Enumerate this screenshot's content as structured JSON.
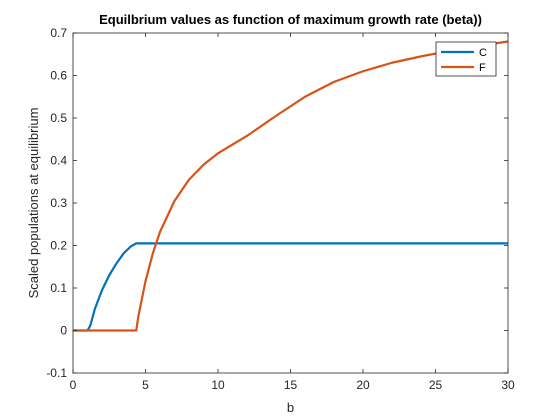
{
  "chart_data": {
    "type": "line",
    "title": "Equilbrium values as function of maximum growth rate (beta))",
    "xlabel": "b",
    "ylabel": "Scaled populations at equilibrium",
    "xlim": [
      0,
      30
    ],
    "ylim": [
      -0.1,
      0.7
    ],
    "xticks": [
      "0",
      "5",
      "10",
      "15",
      "20",
      "25",
      "30"
    ],
    "yticks": [
      "-0.1",
      "0",
      "0.1",
      "0.2",
      "0.3",
      "0.4",
      "0.5",
      "0.6",
      "0.7"
    ],
    "legend_placement": "top-right",
    "grid": false,
    "series": [
      {
        "name": "C",
        "color": "#0072BD",
        "x": [
          0,
          1.0,
          1.2,
          1.5,
          2.0,
          2.5,
          3.0,
          3.5,
          4.0,
          4.36,
          5,
          10,
          15,
          20,
          25,
          30
        ],
        "y": [
          0,
          0,
          0.012,
          0.05,
          0.095,
          0.13,
          0.158,
          0.182,
          0.198,
          0.205,
          0.205,
          0.205,
          0.205,
          0.205,
          0.205,
          0.205
        ]
      },
      {
        "name": "F",
        "color": "#D95319",
        "x": [
          0,
          4.36,
          4.5,
          5,
          5.5,
          6,
          7,
          8,
          9,
          10,
          12,
          14,
          16,
          18,
          20,
          22,
          24,
          26,
          28,
          30
        ],
        "y": [
          0,
          0,
          0.032,
          0.116,
          0.181,
          0.232,
          0.305,
          0.355,
          0.39,
          0.417,
          0.458,
          0.505,
          0.55,
          0.585,
          0.61,
          0.63,
          0.645,
          0.658,
          0.67,
          0.68
        ]
      }
    ]
  }
}
